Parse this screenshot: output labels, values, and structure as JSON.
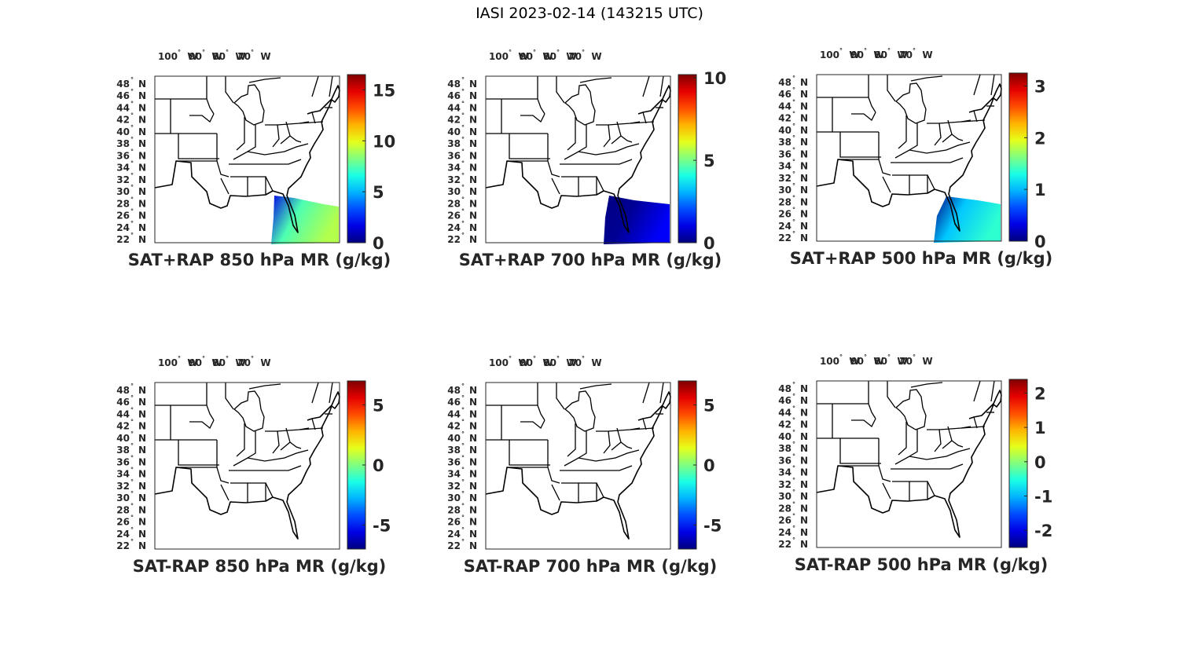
{
  "figure_title": "IASI 2023-02-14 (143215 UTC)",
  "lon_ticks": [
    {
      "deg": "100",
      "hemi": "W"
    },
    {
      "deg": "90",
      "hemi": "W"
    },
    {
      "deg": "80",
      "hemi": "W"
    },
    {
      "deg": "70",
      "hemi": "W"
    }
  ],
  "lat_ticks": [
    {
      "deg": "48",
      "hemi": "N"
    },
    {
      "deg": "46",
      "hemi": "N"
    },
    {
      "deg": "44",
      "hemi": "N"
    },
    {
      "deg": "42",
      "hemi": "N"
    },
    {
      "deg": "40",
      "hemi": "N"
    },
    {
      "deg": "38",
      "hemi": "N"
    },
    {
      "deg": "36",
      "hemi": "N"
    },
    {
      "deg": "34",
      "hemi": "N"
    },
    {
      "deg": "32",
      "hemi": "N"
    },
    {
      "deg": "30",
      "hemi": "N"
    },
    {
      "deg": "28",
      "hemi": "N"
    },
    {
      "deg": "26",
      "hemi": "N"
    },
    {
      "deg": "24",
      "hemi": "N"
    },
    {
      "deg": "22",
      "hemi": "N"
    }
  ],
  "colormap": "jet",
  "panels": [
    {
      "title": "SAT+RAP 850 hPa MR (g/kg)",
      "colorbar": {
        "min": 0,
        "max": 16.5,
        "ticks": [
          0,
          5,
          10,
          15
        ]
      },
      "swath": "hp850",
      "swath_level": 0.55
    },
    {
      "title": "SAT+RAP 700 hPa MR (g/kg)",
      "colorbar": {
        "min": 0,
        "max": 10.2,
        "ticks": [
          0,
          5,
          10
        ]
      },
      "swath": "hp700",
      "swath_level": 0.12
    },
    {
      "title": "SAT+RAP 500 hPa MR (g/kg)",
      "colorbar": {
        "min": 0,
        "max": 3.25,
        "ticks": [
          0,
          1,
          2,
          3
        ]
      },
      "swath": "hp500",
      "swath_level": 0.42
    },
    {
      "title": "SAT-RAP 850 hPa MR (g/kg)",
      "colorbar": {
        "min": -7,
        "max": 7,
        "ticks": [
          -5,
          0,
          5
        ]
      },
      "swath": "none"
    },
    {
      "title": "SAT-RAP 700 hPa MR (g/kg)",
      "colorbar": {
        "min": -7,
        "max": 7,
        "ticks": [
          -5,
          0,
          5
        ]
      },
      "swath": "none"
    },
    {
      "title": "SAT-RAP 500 hPa MR (g/kg)",
      "colorbar": {
        "min": -2.5,
        "max": 2.4,
        "ticks": [
          -2,
          -1,
          0,
          1,
          2
        ]
      },
      "swath": "none"
    }
  ]
}
